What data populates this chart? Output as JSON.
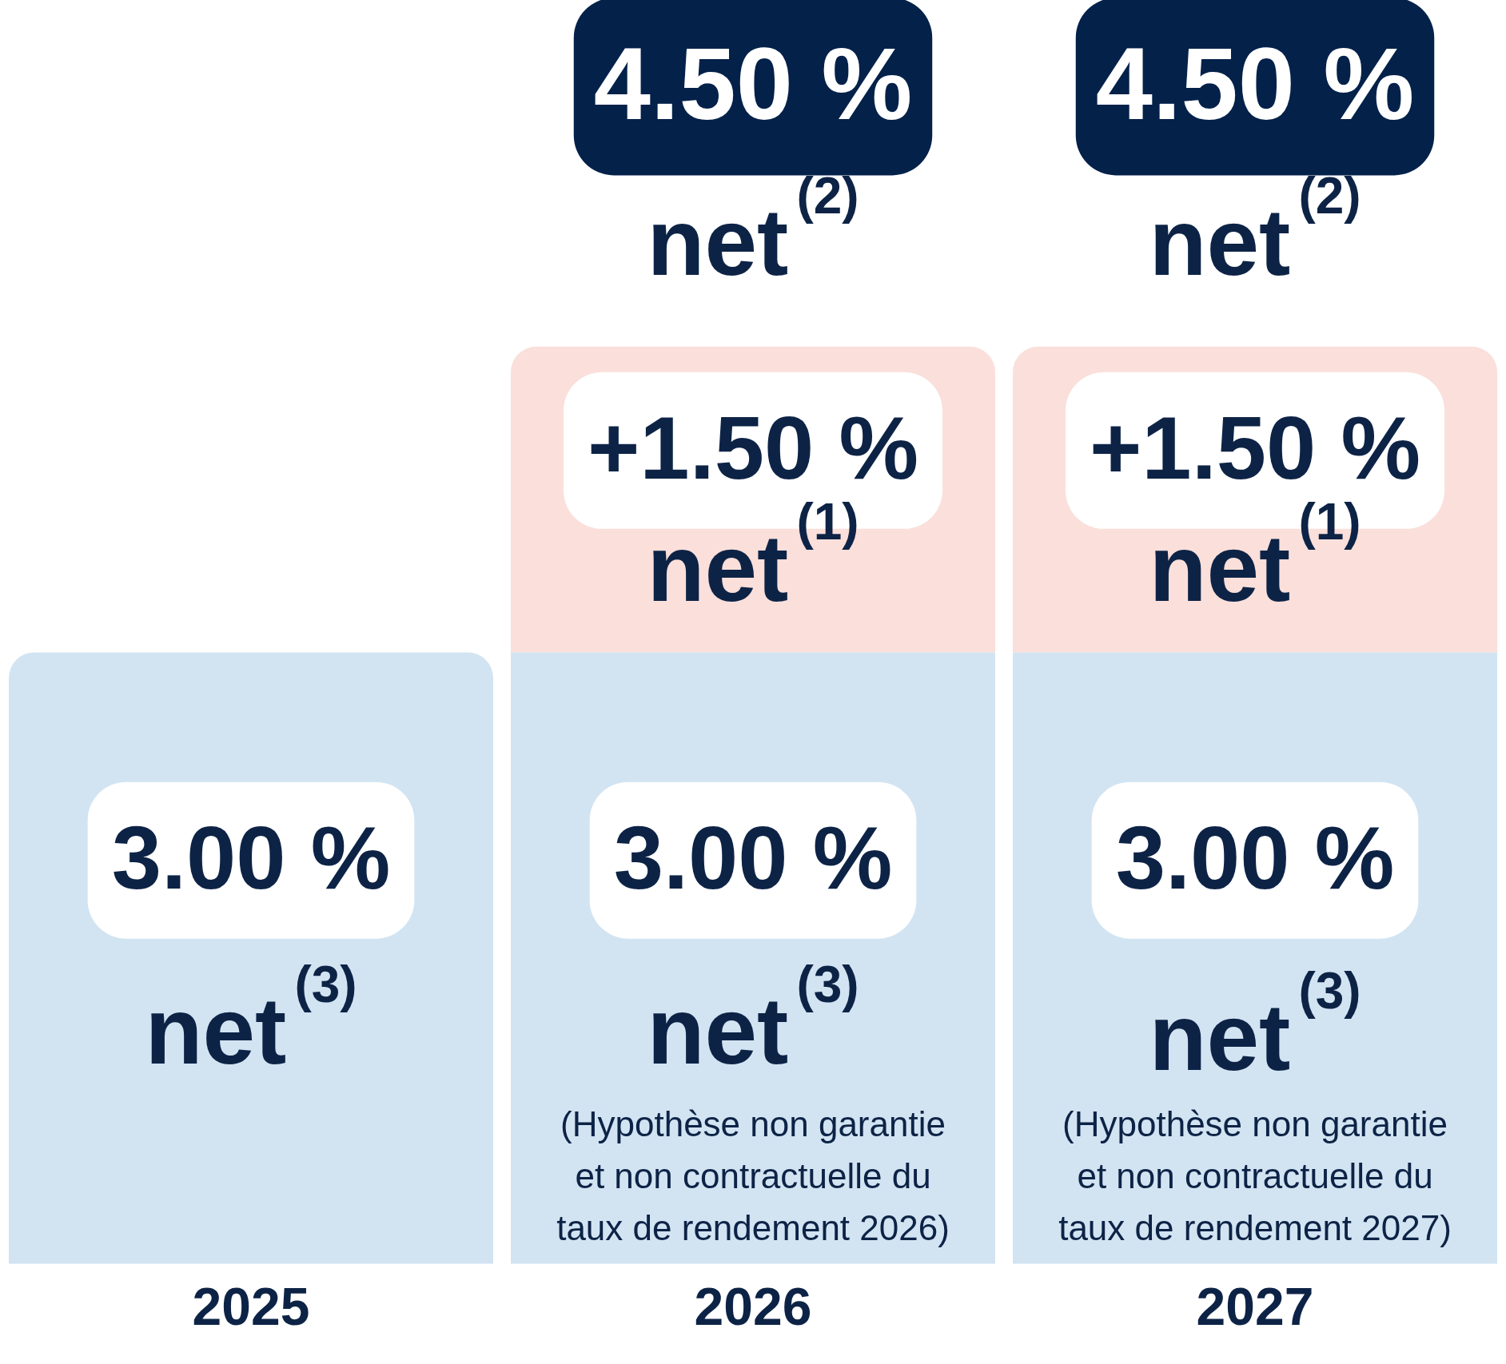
{
  "chart_data": {
    "type": "bar",
    "categories": [
      "2025",
      "2026",
      "2027"
    ],
    "stacked": true,
    "series": [
      {
        "color": "#d2e4f2",
        "values": [
          3.0,
          3.0,
          3.0
        ],
        "value_labels": [
          "3.00 %",
          "3.00 %",
          "3.00 %"
        ]
      },
      {
        "color": "#fadfda",
        "values": [
          null,
          1.5,
          1.5
        ],
        "value_labels": [
          null,
          "+1.50 %",
          "+1.50 %"
        ]
      }
    ],
    "totals": [
      null,
      "4.50 %",
      "4.50 %"
    ],
    "ylim": [
      0,
      6.2
    ],
    "tick_labels": "x",
    "grid": false,
    "legend": false,
    "annotations": [
      "net$^{(3)}$",
      "net$^{(3)}$",
      "net$^{(3)}$",
      "(Hypothèse non garantie et non contractuelle du taux de rendement 2026)",
      "(Hypothèse non garantie et non contractuelle du taux de rendement 2027)",
      "net$^{(1)}$",
      "net$^{(1)}$",
      "net$^{(2)}$",
      "net$^{(2)}$"
    ]
  }
}
